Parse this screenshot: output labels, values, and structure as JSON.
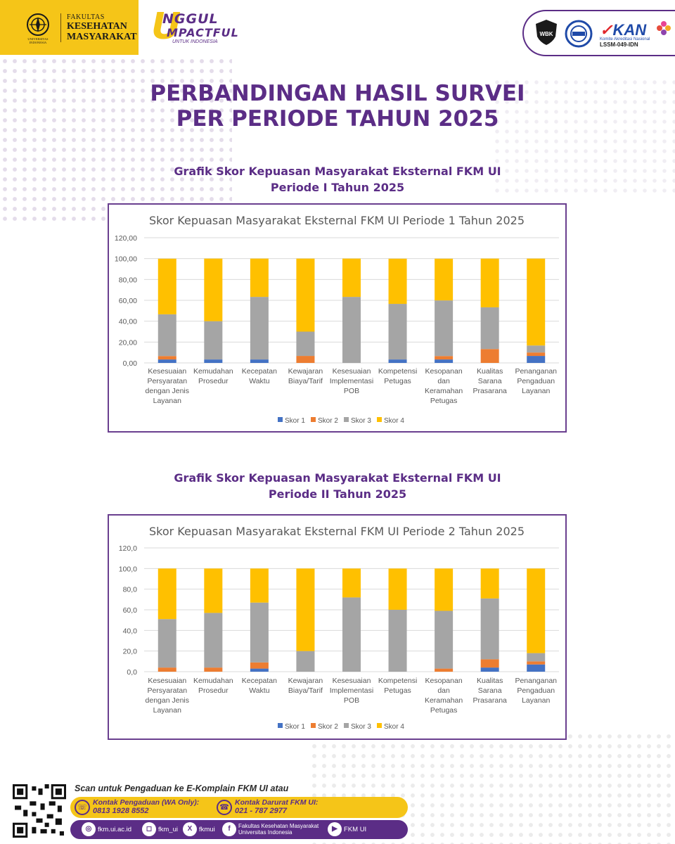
{
  "header": {
    "university_line1": "UNIVERSITAS",
    "university_line2": "INDONESIA",
    "faculty_small": "FAKULTAS",
    "faculty_line1": "KESEHATAN",
    "faculty_line2": "MASYARAKAT",
    "tagline_u": "U",
    "tagline_1": "NGGUL",
    "tagline_2": "MPACTFUL",
    "tagline_3": "UNTUK INDONESIA",
    "cert_wbk": "WBK",
    "cert_kan": "KAN",
    "cert_kan_sub": "Komite Akreditasi Nasional",
    "cert_kan_id": "LSSM-049-IDN"
  },
  "title_line1": "PERBANDINGAN HASIL SURVEI",
  "title_line2": "PER PERIODE TAHUN 2025",
  "section1": {
    "title_line1": "Grafik Skor Kepuasan Masyarakat Eksternal FKM UI",
    "title_line2": "Periode I Tahun 2025"
  },
  "section2": {
    "title_line1": "Grafik Skor Kepuasan Masyarakat Eksternal FKM UI",
    "title_line2": "Periode II Tahun 2025"
  },
  "colors": {
    "skor1": "#4472c4",
    "skor2": "#ed7d31",
    "skor3": "#a5a5a5",
    "skor4": "#ffc000",
    "brand_purple": "#5b2d86",
    "brand_yellow": "#f5c518"
  },
  "chart_data": [
    {
      "type": "bar",
      "stacked": true,
      "title": "Skor Kepuasan Masyarakat Eksternal FKM UI Periode 1 Tahun 2025",
      "ylim": [
        0,
        120
      ],
      "yticks": [
        "0,00",
        "20,00",
        "40,00",
        "60,00",
        "80,00",
        "100,00",
        "120,00"
      ],
      "categories": [
        [
          "Kesesuaian",
          "Persyaratan",
          "dengan Jenis",
          "Layanan"
        ],
        [
          "Kemudahan",
          "Prosedur"
        ],
        [
          "Kecepatan",
          "Waktu"
        ],
        [
          "Kewajaran",
          "Biaya/Tarif"
        ],
        [
          "Kesesuaian",
          "Implementasi",
          "POB"
        ],
        [
          "Kompetensi",
          "Petugas"
        ],
        [
          "Kesopanan",
          "dan",
          "Keramahan",
          "Petugas"
        ],
        [
          "Kualitas",
          "Sarana",
          "Prasarana"
        ],
        [
          "Penanganan",
          "Pengaduan",
          "Layanan"
        ]
      ],
      "legend_position": "bottom",
      "grid": true,
      "series": [
        {
          "name": "Skor 1",
          "values": [
            3.3,
            3.3,
            3.3,
            0,
            0,
            3.3,
            3.3,
            0,
            6.7
          ]
        },
        {
          "name": "Skor 2",
          "values": [
            3.3,
            0,
            0,
            6.7,
            0,
            0,
            3.3,
            13.3,
            3.3
          ]
        },
        {
          "name": "Skor 3",
          "values": [
            40.0,
            36.7,
            60.0,
            23.3,
            63.3,
            53.3,
            53.3,
            40.0,
            6.7
          ]
        },
        {
          "name": "Skor 4",
          "values": [
            53.3,
            60.0,
            36.7,
            70.0,
            36.7,
            43.3,
            40.0,
            46.7,
            83.3
          ]
        }
      ]
    },
    {
      "type": "bar",
      "stacked": true,
      "title": "Skor Kepuasan Masyarakat Eksternal FKM UI Periode 2 Tahun 2025",
      "ylim": [
        0,
        120
      ],
      "yticks": [
        "0,0",
        "20,0",
        "40,0",
        "60,0",
        "80,0",
        "100,0",
        "120,0"
      ],
      "categories": [
        [
          "Kesesuaian",
          "Persyaratan",
          "dengan Jenis",
          "Layanan"
        ],
        [
          "Kemudahan",
          "Prosedur"
        ],
        [
          "Kecepatan",
          "Waktu"
        ],
        [
          "Kewajaran",
          "Biaya/Tarif"
        ],
        [
          "Kesesuaian",
          "Implementasi",
          "POB"
        ],
        [
          "Kompetensi",
          "Petugas"
        ],
        [
          "Kesopanan",
          "dan",
          "Keramahan",
          "Petugas"
        ],
        [
          "Kualitas",
          "Sarana",
          "Prasarana"
        ],
        [
          "Penanganan",
          "Pengaduan",
          "Layanan"
        ]
      ],
      "legend_position": "bottom",
      "grid": true,
      "series": [
        {
          "name": "Skor 1",
          "values": [
            0,
            0,
            3.0,
            0,
            0,
            0,
            0,
            4.0,
            7.0
          ]
        },
        {
          "name": "Skor 2",
          "values": [
            4.0,
            4.0,
            6.0,
            0,
            0,
            0,
            3.0,
            8.0,
            3.0
          ]
        },
        {
          "name": "Skor 3",
          "values": [
            47.0,
            53.0,
            58.0,
            20.0,
            72.0,
            60.0,
            56.0,
            59.0,
            8.0
          ]
        },
        {
          "name": "Skor 4",
          "values": [
            49.0,
            43.0,
            33.0,
            80.0,
            28.0,
            40.0,
            41.0,
            29.0,
            82.0
          ]
        }
      ]
    }
  ],
  "footer": {
    "scan_text": "Scan untuk Pengaduan ke E-Komplain FKM UI atau",
    "contact1_label": "Kontak Pengaduan (WA Only):",
    "contact1_number": "0813 1928 8552",
    "contact2_label": "Kontak Darurat FKM UI:",
    "contact2_number": "021 - 787 2977",
    "web": "fkm.ui.ac.id",
    "instagram": "fkm_ui",
    "x": "fkmui",
    "facebook_line1": "Fakultas Kesehatan Masyarakat",
    "facebook_line2": "Universitas Indonesia",
    "youtube": "FKM UI"
  }
}
